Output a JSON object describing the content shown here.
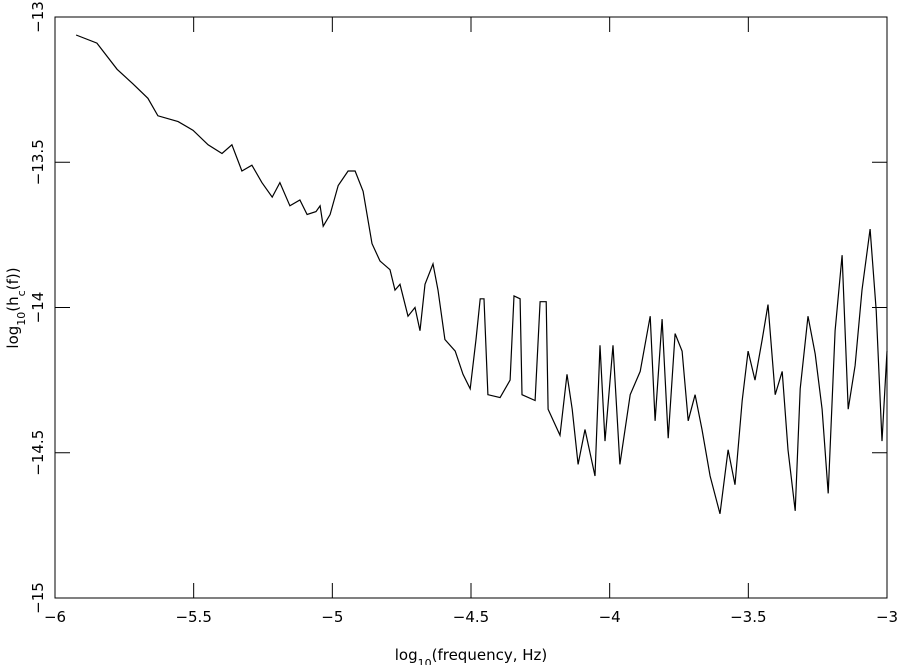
{
  "chart_data": {
    "type": "line",
    "xlabel": [
      {
        "text": "log"
      },
      {
        "text": "10",
        "sub": true
      },
      {
        "text": "(frequency, Hz)"
      }
    ],
    "ylabel": [
      {
        "text": "log"
      },
      {
        "text": "10",
        "sub": true
      },
      {
        "text": "(h"
      },
      {
        "text": "c",
        "sub": true
      },
      {
        "text": "(f))"
      }
    ],
    "xlim": [
      -6,
      -3
    ],
    "ylim": [
      -15,
      -13
    ],
    "xticks": [
      {
        "value": -6,
        "label": "−6"
      },
      {
        "value": -5.5,
        "label": "−5.5"
      },
      {
        "value": -5,
        "label": "−5"
      },
      {
        "value": -4.5,
        "label": "−4.5"
      },
      {
        "value": -4,
        "label": "−4"
      },
      {
        "value": -3.5,
        "label": "−3.5"
      },
      {
        "value": -3,
        "label": "−3"
      }
    ],
    "yticks": [
      {
        "value": -15,
        "label": "−15"
      },
      {
        "value": -14.5,
        "label": "−14.5"
      },
      {
        "value": -14,
        "label": "−14"
      },
      {
        "value": -13.5,
        "label": "−13.5"
      },
      {
        "value": -13,
        "label": "−13"
      }
    ],
    "color": "#000000",
    "x": [
      -5.924,
      -5.849,
      -5.776,
      -5.719,
      -5.665,
      -5.629,
      -5.556,
      -5.502,
      -5.448,
      -5.398,
      -5.362,
      -5.326,
      -5.29,
      -5.254,
      -5.217,
      -5.189,
      -5.153,
      -5.117,
      -5.091,
      -5.059,
      -5.044,
      -5.033,
      -5.008,
      -4.979,
      -4.943,
      -4.918,
      -4.889,
      -4.857,
      -4.828,
      -4.792,
      -4.774,
      -4.756,
      -4.727,
      -4.702,
      -4.684,
      -4.666,
      -4.637,
      -4.619,
      -4.594,
      -4.557,
      -4.529,
      -4.503,
      -4.482,
      -4.467,
      -4.453,
      -4.439,
      -4.395,
      -4.359,
      -4.345,
      -4.323,
      -4.316,
      -4.269,
      -4.251,
      -4.229,
      -4.222,
      -4.179,
      -4.154,
      -4.135,
      -4.114,
      -4.089,
      -4.053,
      -4.035,
      -4.017,
      -3.988,
      -3.963,
      -3.926,
      -3.89,
      -3.854,
      -3.836,
      -3.811,
      -3.789,
      -3.764,
      -3.739,
      -3.717,
      -3.692,
      -3.667,
      -3.638,
      -3.602,
      -3.573,
      -3.548,
      -3.522,
      -3.501,
      -3.476,
      -3.45,
      -3.429,
      -3.403,
      -3.378,
      -3.357,
      -3.331,
      -3.313,
      -3.285,
      -3.259,
      -3.234,
      -3.212,
      -3.187,
      -3.162,
      -3.14,
      -3.115,
      -3.09,
      -3.061,
      -3.039,
      -3.018,
      -3.0
    ],
    "values": [
      -13.062,
      -13.09,
      -13.18,
      -13.23,
      -13.28,
      -13.34,
      -13.36,
      -13.39,
      -13.44,
      -13.47,
      -13.44,
      -13.53,
      -13.51,
      -13.57,
      -13.62,
      -13.57,
      -13.65,
      -13.63,
      -13.68,
      -13.67,
      -13.65,
      -13.72,
      -13.68,
      -13.58,
      -13.53,
      -13.53,
      -13.6,
      -13.78,
      -13.84,
      -13.87,
      -13.94,
      -13.92,
      -14.03,
      -14.0,
      -14.08,
      -13.92,
      -13.85,
      -13.94,
      -14.11,
      -14.15,
      -14.23,
      -14.28,
      -14.11,
      -13.97,
      -13.97,
      -14.3,
      -14.31,
      -14.25,
      -13.96,
      -13.97,
      -14.3,
      -14.32,
      -13.98,
      -13.98,
      -14.35,
      -14.44,
      -14.23,
      -14.35,
      -14.54,
      -14.42,
      -14.58,
      -14.13,
      -14.46,
      -14.13,
      -14.54,
      -14.3,
      -14.22,
      -14.03,
      -14.39,
      -14.04,
      -14.45,
      -14.09,
      -14.15,
      -14.39,
      -14.3,
      -14.42,
      -14.58,
      -14.71,
      -14.49,
      -14.61,
      -14.32,
      -14.15,
      -14.25,
      -14.11,
      -13.99,
      -14.3,
      -14.22,
      -14.49,
      -14.7,
      -14.28,
      -14.03,
      -14.16,
      -14.35,
      -14.64,
      -14.08,
      -13.82,
      -14.35,
      -14.2,
      -13.94,
      -13.73,
      -14.01,
      -14.46,
      -14.15
    ]
  }
}
